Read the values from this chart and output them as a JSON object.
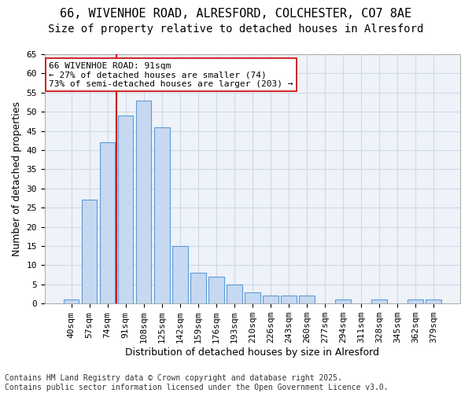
{
  "title_line1": "66, WIVENHOE ROAD, ALRESFORD, COLCHESTER, CO7 8AE",
  "title_line2": "Size of property relative to detached houses in Alresford",
  "xlabel": "Distribution of detached houses by size in Alresford",
  "ylabel": "Number of detached properties",
  "categories": [
    "40sqm",
    "57sqm",
    "74sqm",
    "91sqm",
    "108sqm",
    "125sqm",
    "142sqm",
    "159sqm",
    "176sqm",
    "193sqm",
    "210sqm",
    "226sqm",
    "243sqm",
    "260sqm",
    "277sqm",
    "294sqm",
    "311sqm",
    "328sqm",
    "345sqm",
    "362sqm",
    "379sqm"
  ],
  "values": [
    1,
    27,
    42,
    49,
    53,
    46,
    15,
    8,
    7,
    5,
    3,
    2,
    2,
    2,
    0,
    1,
    0,
    1,
    0,
    1,
    1
  ],
  "bar_color": "#c6d9f1",
  "bar_edge_color": "#5b9bd5",
  "grid_color": "#d0d8e8",
  "background_color": "#eef2f9",
  "property_line_index": 3,
  "property_label": "66 WIVENHOE ROAD: 91sqm",
  "annotation_line2": "← 27% of detached houses are smaller (74)",
  "annotation_line3": "73% of semi-detached houses are larger (203) →",
  "annotation_box_color": "#ffffff",
  "annotation_border_color": "#cc0000",
  "vline_color": "#cc0000",
  "ylim": [
    0,
    65
  ],
  "yticks": [
    0,
    5,
    10,
    15,
    20,
    25,
    30,
    35,
    40,
    45,
    50,
    55,
    60,
    65
  ],
  "footer_line1": "Contains HM Land Registry data © Crown copyright and database right 2025.",
  "footer_line2": "Contains public sector information licensed under the Open Government Licence v3.0.",
  "title_fontsize": 11,
  "subtitle_fontsize": 10,
  "axis_label_fontsize": 9,
  "tick_fontsize": 8,
  "annotation_fontsize": 8,
  "footer_fontsize": 7
}
